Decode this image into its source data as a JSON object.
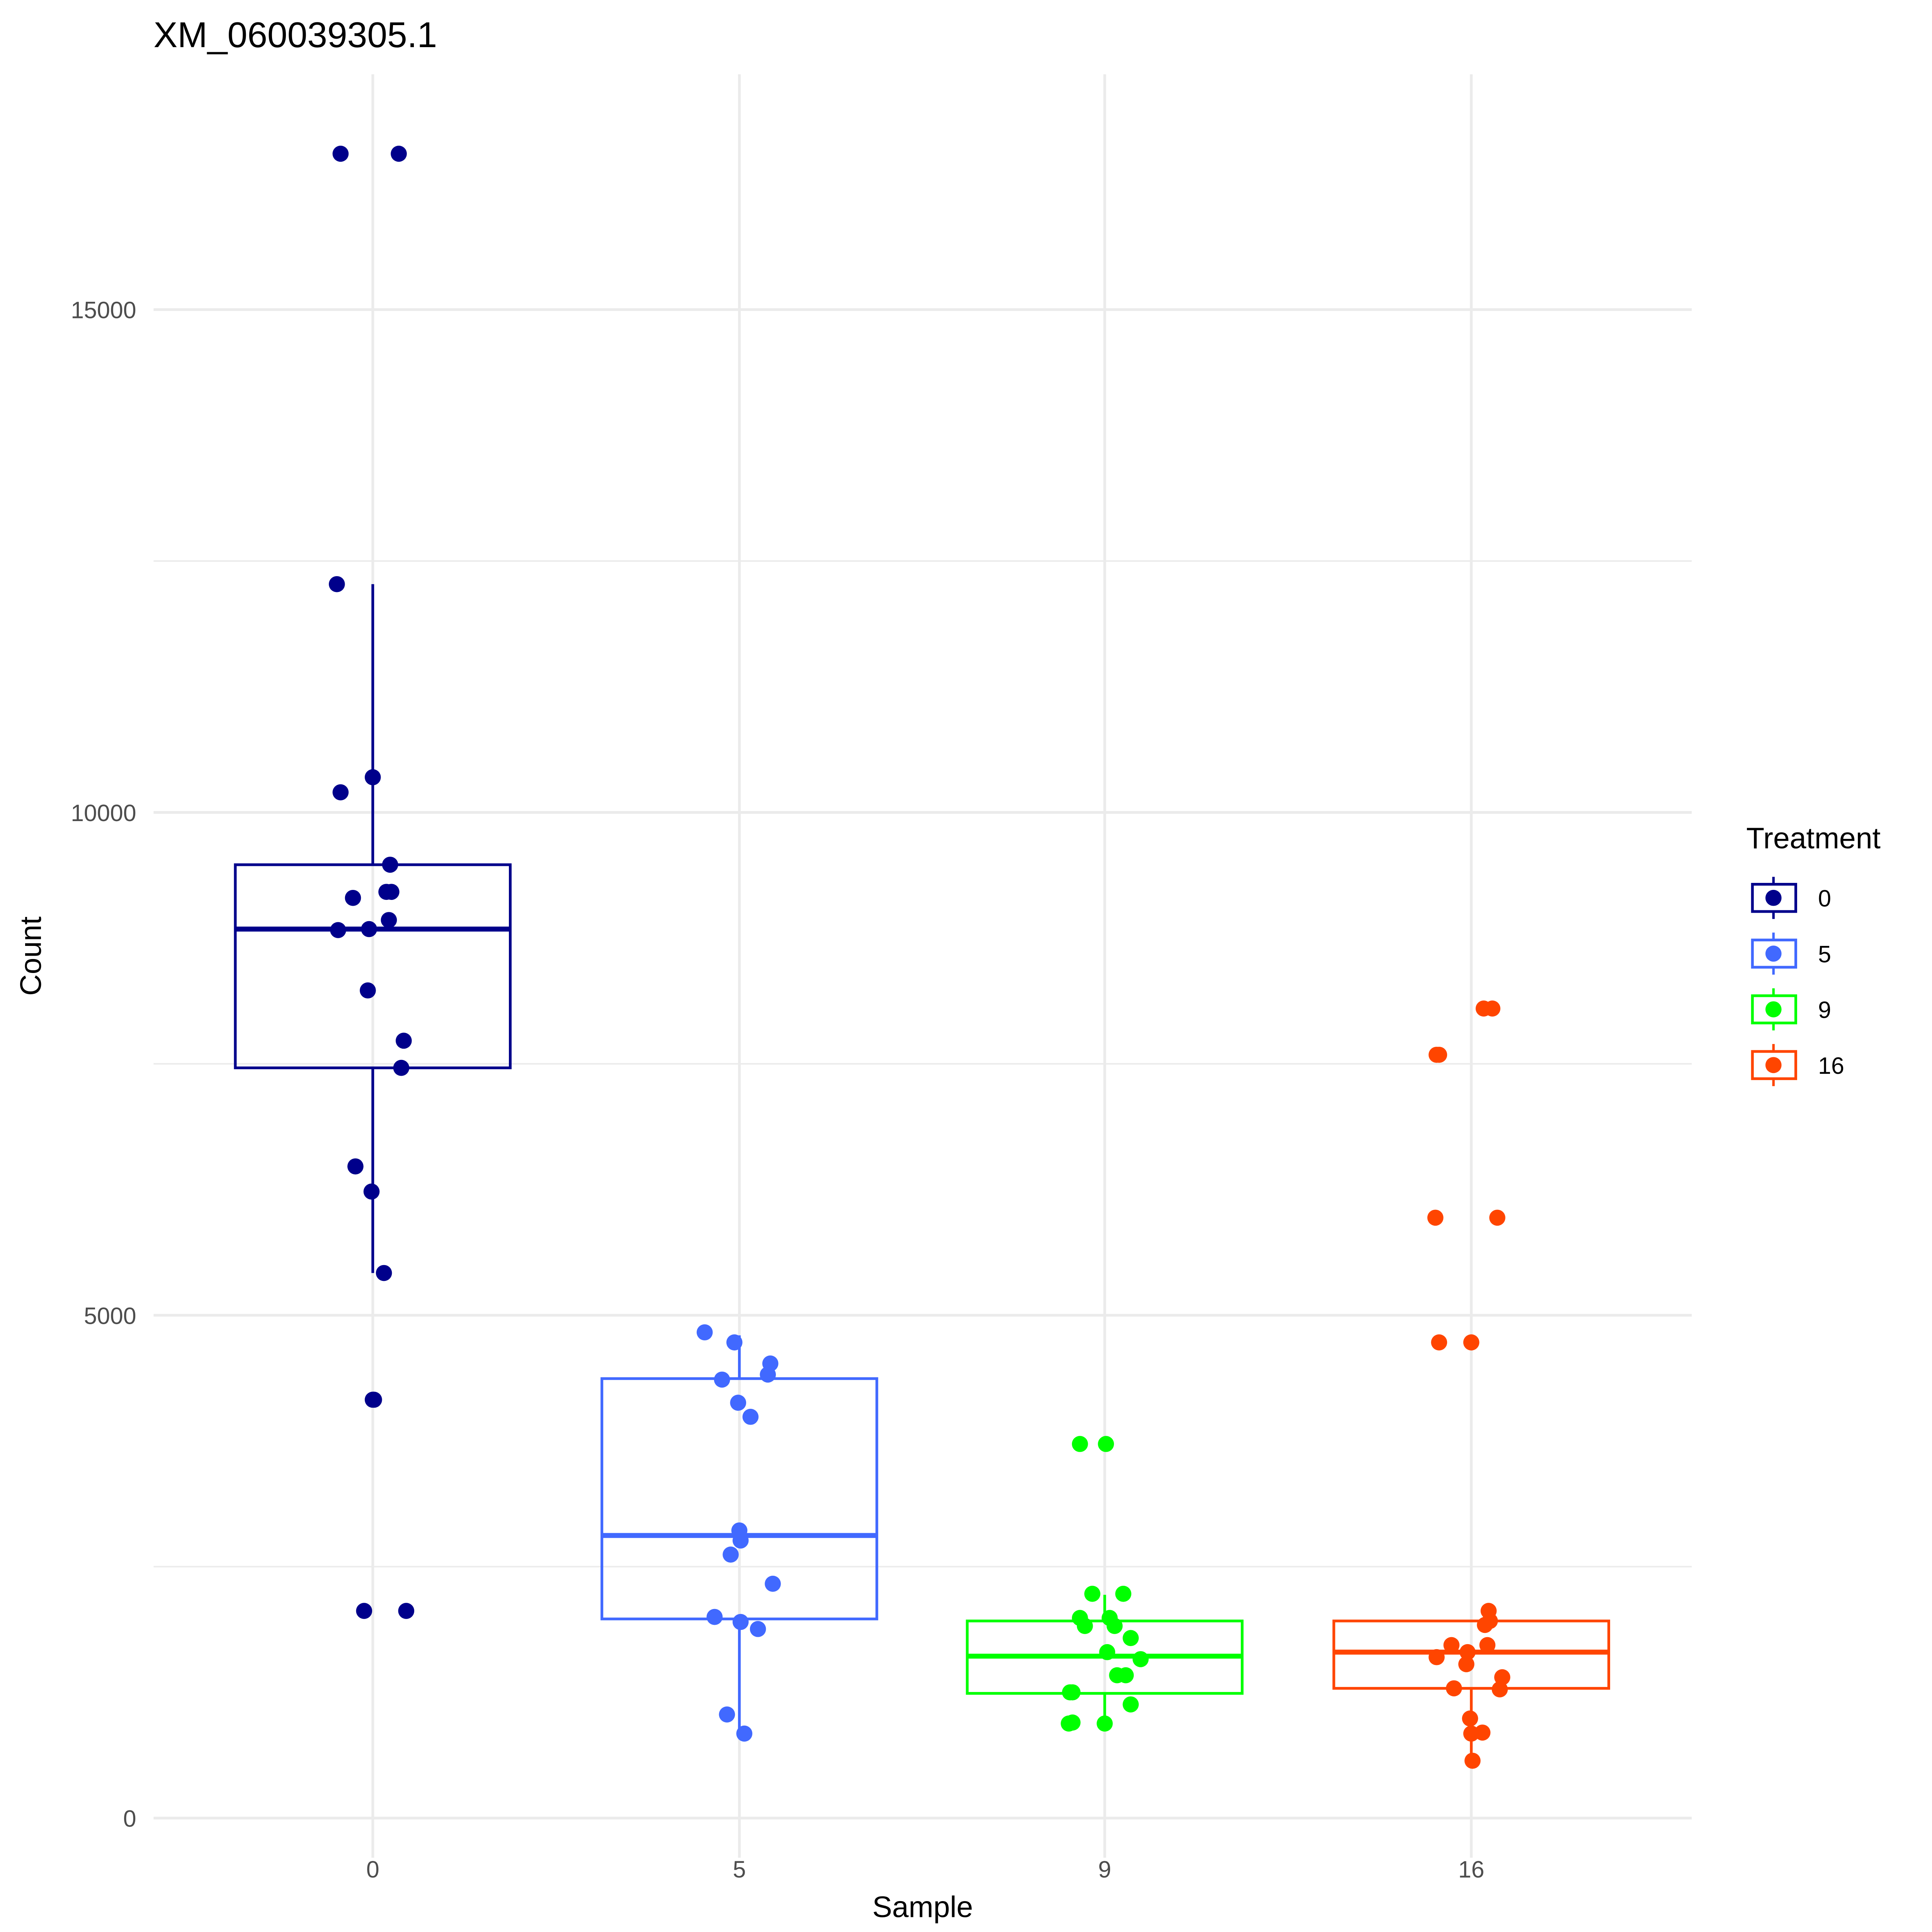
{
  "chart_data": {
    "type": "box",
    "title": "XM_060039305.1",
    "xlabel": "Sample",
    "ylabel": "Count",
    "categories": [
      "0",
      "5",
      "9",
      "16"
    ],
    "yticks": [
      0,
      5000,
      10000,
      15000
    ],
    "ytick_labels": [
      "0",
      "5000",
      "10000",
      "15000"
    ],
    "ylim": [
      -400,
      17400
    ],
    "grid": true,
    "legend": {
      "title": "Treatment",
      "placement": "right",
      "entries": [
        {
          "label": "0",
          "color": "#00008B"
        },
        {
          "label": "5",
          "color": "#4169FF"
        },
        {
          "label": "9",
          "color": "#00FF00"
        },
        {
          "label": "16",
          "color": "#FF4500"
        }
      ]
    },
    "series": [
      {
        "name": "0",
        "color": "#00008B",
        "box": {
          "whisker_low": 5420,
          "q1": 7460,
          "median": 8840,
          "q3": 9480,
          "whisker_high": 12270
        },
        "points": [
          16550,
          16550,
          12270,
          10350,
          10200,
          9480,
          9210,
          9210,
          9150,
          8930,
          8840,
          8830,
          8230,
          7730,
          7460,
          6480,
          6230,
          5420,
          4160,
          4160,
          2060,
          2060
        ]
      },
      {
        "name": "5",
        "color": "#4169FF",
        "box": {
          "whisker_low": 840,
          "q1": 1980,
          "median": 2810,
          "q3": 4370,
          "whisker_high": 4800
        },
        "points": [
          4830,
          4730,
          4520,
          4410,
          4360,
          4130,
          3990,
          2860,
          2760,
          2620,
          2330,
          2000,
          1950,
          1880,
          1030,
          840
        ]
      },
      {
        "name": "9",
        "color": "#00FF00",
        "box": {
          "whisker_low": 940,
          "q1": 1240,
          "median": 1610,
          "q3": 1960,
          "whisker_high": 2220
        },
        "points": [
          3720,
          3720,
          2230,
          2230,
          1990,
          1990,
          1910,
          1910,
          1790,
          1650,
          1580,
          1420,
          1420,
          1250,
          1250,
          1130,
          940,
          940,
          950
        ]
      },
      {
        "name": "16",
        "color": "#FF4500",
        "box": {
          "whisker_low": 570,
          "q1": 1290,
          "median": 1650,
          "q3": 1960,
          "whisker_high": 1960
        },
        "points": [
          8050,
          8050,
          7590,
          7590,
          5970,
          5970,
          4730,
          4730,
          2060,
          1960,
          1920,
          1720,
          1720,
          1650,
          1600,
          1530,
          1400,
          1280,
          1290,
          990,
          850,
          840,
          570
        ]
      }
    ]
  }
}
